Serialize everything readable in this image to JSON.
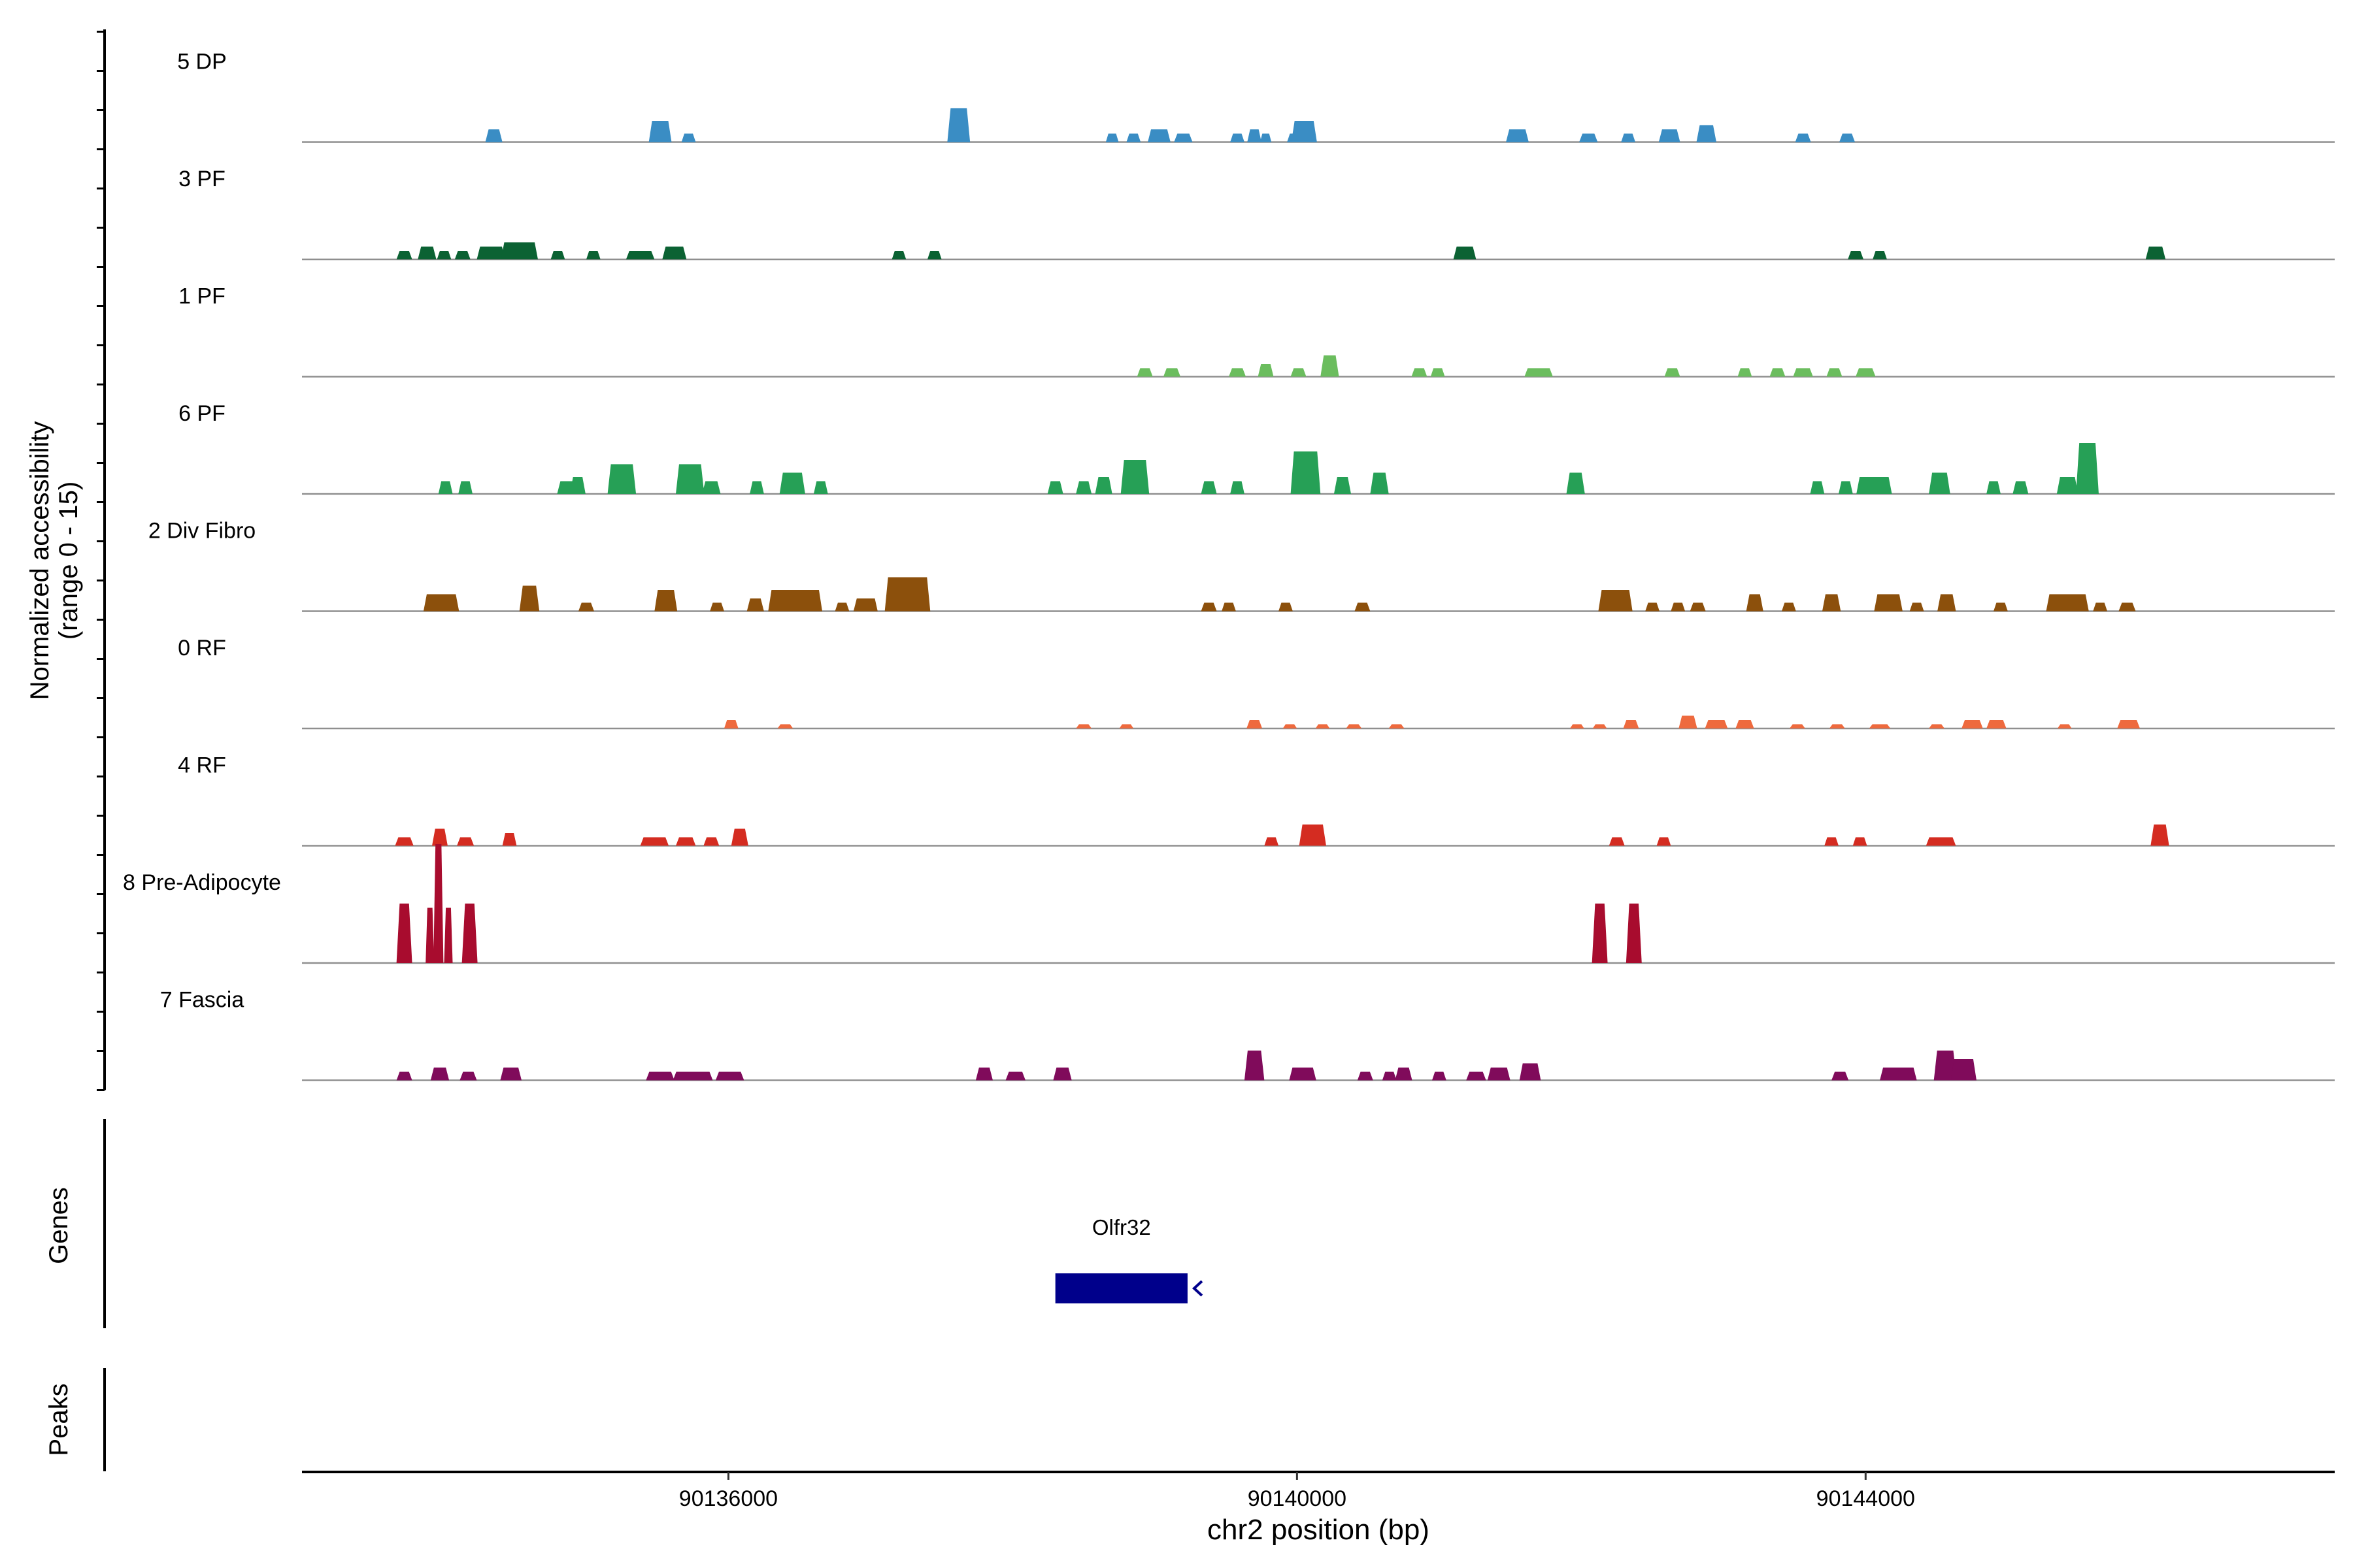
{
  "chart_data": {
    "type": "area",
    "title": "",
    "region": "chr2",
    "xlabel": "chr2 position (bp)",
    "ylabel_line1": "Normalized accessibility",
    "ylabel_line2": "(range 0 - 15)",
    "xlim": [
      90133000,
      90147300
    ],
    "ylim": [
      0,
      15
    ],
    "x_ticks": [
      90136000,
      90140000,
      90144000
    ],
    "x_tick_labels": [
      "90136000",
      "90140000",
      "90144000"
    ],
    "series": [
      {
        "name": "5 DP",
        "color": "#3a8dc4",
        "peaks": [
          [
            90134350,
            120,
            3
          ],
          [
            90135520,
            160,
            5
          ],
          [
            90135720,
            100,
            2
          ],
          [
            90137620,
            160,
            8
          ],
          [
            90138700,
            90,
            2
          ],
          [
            90138850,
            100,
            2
          ],
          [
            90139030,
            160,
            3
          ],
          [
            90139200,
            130,
            2
          ],
          [
            90139580,
            100,
            2
          ],
          [
            90139700,
            100,
            3
          ],
          [
            90139780,
            80,
            2
          ],
          [
            90139980,
            100,
            2
          ],
          [
            90140050,
            180,
            5
          ],
          [
            90141550,
            160,
            3
          ],
          [
            90142050,
            130,
            2
          ],
          [
            90142330,
            100,
            2
          ],
          [
            90142620,
            150,
            3
          ],
          [
            90142880,
            140,
            4
          ],
          [
            90143560,
            110,
            2
          ],
          [
            90143870,
            110,
            2
          ]
        ]
      },
      {
        "name": "3 PF",
        "color": "#0b6233",
        "peaks": [
          [
            90133720,
            110,
            2
          ],
          [
            90133880,
            130,
            3
          ],
          [
            90134000,
            100,
            2
          ],
          [
            90134130,
            110,
            2
          ],
          [
            90134330,
            200,
            3
          ],
          [
            90134530,
            260,
            4
          ],
          [
            90134800,
            100,
            2
          ],
          [
            90135050,
            100,
            2
          ],
          [
            90135380,
            200,
            2
          ],
          [
            90135620,
            170,
            3
          ],
          [
            90137200,
            100,
            2
          ],
          [
            90137450,
            100,
            2
          ],
          [
            90141180,
            160,
            3
          ],
          [
            90143930,
            110,
            2
          ],
          [
            90144100,
            100,
            2
          ],
          [
            90146040,
            140,
            3
          ]
        ]
      },
      {
        "name": "1 PF",
        "color": "#6bbd5e",
        "peaks": [
          [
            90138930,
            110,
            2
          ],
          [
            90139120,
            120,
            2
          ],
          [
            90139580,
            120,
            2
          ],
          [
            90139780,
            110,
            3
          ],
          [
            90140010,
            110,
            2
          ],
          [
            90140230,
            130,
            5
          ],
          [
            90140860,
            110,
            2
          ],
          [
            90140990,
            100,
            2
          ],
          [
            90141700,
            200,
            2
          ],
          [
            90142640,
            110,
            2
          ],
          [
            90143150,
            100,
            2
          ],
          [
            90143380,
            110,
            2
          ],
          [
            90143560,
            140,
            2
          ],
          [
            90143780,
            110,
            2
          ],
          [
            90144000,
            140,
            2
          ]
        ]
      },
      {
        "name": "6 PF",
        "color": "#26a056",
        "peaks": [
          [
            90134010,
            100,
            3
          ],
          [
            90134150,
            100,
            3
          ],
          [
            90134860,
            130,
            3
          ],
          [
            90134940,
            110,
            4
          ],
          [
            90135250,
            200,
            7
          ],
          [
            90135730,
            200,
            7
          ],
          [
            90135880,
            130,
            3
          ],
          [
            90136200,
            100,
            3
          ],
          [
            90136450,
            180,
            5
          ],
          [
            90136650,
            100,
            3
          ],
          [
            90138300,
            110,
            3
          ],
          [
            90138500,
            110,
            3
          ],
          [
            90138640,
            120,
            4
          ],
          [
            90138860,
            200,
            8
          ],
          [
            90139380,
            110,
            3
          ],
          [
            90139580,
            100,
            3
          ],
          [
            90140060,
            210,
            10
          ],
          [
            90140320,
            120,
            4
          ],
          [
            90140580,
            130,
            5
          ],
          [
            90141960,
            130,
            5
          ],
          [
            90143660,
            100,
            3
          ],
          [
            90143860,
            100,
            3
          ],
          [
            90144060,
            250,
            4
          ],
          [
            90144520,
            150,
            5
          ],
          [
            90144900,
            100,
            3
          ],
          [
            90145090,
            110,
            3
          ],
          [
            90145420,
            150,
            4
          ],
          [
            90145560,
            160,
            12
          ]
        ]
      },
      {
        "name": "2 Div Fibro",
        "color": "#8c500c",
        "peaks": [
          [
            90133980,
            250,
            4
          ],
          [
            90134600,
            140,
            6
          ],
          [
            90135000,
            110,
            2
          ],
          [
            90135560,
            160,
            5
          ],
          [
            90135920,
            100,
            2
          ],
          [
            90136190,
            120,
            3
          ],
          [
            90136470,
            380,
            5
          ],
          [
            90136800,
            100,
            2
          ],
          [
            90136950,
            140,
            3
          ],
          [
            90137000,
            100,
            3
          ],
          [
            90137260,
            320,
            8
          ],
          [
            90139380,
            110,
            2
          ],
          [
            90139520,
            100,
            2
          ],
          [
            90139920,
            100,
            2
          ],
          [
            90140460,
            110,
            2
          ],
          [
            90142240,
            240,
            5
          ],
          [
            90142500,
            100,
            2
          ],
          [
            90142680,
            100,
            2
          ],
          [
            90142820,
            110,
            2
          ],
          [
            90143220,
            120,
            4
          ],
          [
            90143460,
            100,
            2
          ],
          [
            90143760,
            130,
            4
          ],
          [
            90144160,
            200,
            4
          ],
          [
            90144360,
            100,
            2
          ],
          [
            90144570,
            130,
            4
          ],
          [
            90144950,
            100,
            2
          ],
          [
            90145420,
            300,
            4
          ],
          [
            90145650,
            100,
            2
          ],
          [
            90145840,
            120,
            2
          ]
        ]
      },
      {
        "name": "0 RF",
        "color": "#ee6a3e",
        "peaks": [
          [
            90136020,
            100,
            2
          ],
          [
            90136400,
            110,
            1
          ],
          [
            90138500,
            110,
            1
          ],
          [
            90138800,
            100,
            1
          ],
          [
            90139700,
            110,
            2
          ],
          [
            90139950,
            100,
            1
          ],
          [
            90140180,
            100,
            1
          ],
          [
            90140400,
            110,
            1
          ],
          [
            90140700,
            110,
            1
          ],
          [
            90141970,
            100,
            1
          ],
          [
            90142130,
            100,
            1
          ],
          [
            90142350,
            110,
            2
          ],
          [
            90142750,
            130,
            3
          ],
          [
            90142950,
            160,
            2
          ],
          [
            90143150,
            130,
            2
          ],
          [
            90143520,
            110,
            1
          ],
          [
            90143800,
            110,
            1
          ],
          [
            90144100,
            150,
            1
          ],
          [
            90144500,
            110,
            1
          ],
          [
            90144750,
            150,
            2
          ],
          [
            90144920,
            140,
            2
          ],
          [
            90145400,
            100,
            1
          ],
          [
            90145850,
            160,
            2
          ]
        ]
      },
      {
        "name": "4 RF",
        "color": "#d42c21",
        "peaks": [
          [
            90133720,
            130,
            2
          ],
          [
            90133970,
            110,
            4
          ],
          [
            90134150,
            120,
            2
          ],
          [
            90134460,
            100,
            3
          ],
          [
            90135480,
            200,
            2
          ],
          [
            90135700,
            140,
            2
          ],
          [
            90135880,
            110,
            2
          ],
          [
            90136080,
            120,
            4
          ],
          [
            90139820,
            100,
            2
          ],
          [
            90140110,
            190,
            5
          ],
          [
            90142250,
            110,
            2
          ],
          [
            90142580,
            100,
            2
          ],
          [
            90143760,
            100,
            2
          ],
          [
            90143960,
            100,
            2
          ],
          [
            90144530,
            210,
            2
          ],
          [
            90146070,
            130,
            5
          ]
        ]
      },
      {
        "name": "8 Pre-Adipocyte",
        "color": "#a80c2e",
        "peaks": [
          [
            90133720,
            110,
            14
          ],
          [
            90133900,
            60,
            13
          ],
          [
            90133960,
            70,
            28
          ],
          [
            90134030,
            60,
            13
          ],
          [
            90134180,
            110,
            14
          ],
          [
            90142130,
            110,
            14
          ],
          [
            90142370,
            110,
            14
          ]
        ]
      },
      {
        "name": "7 Fascia",
        "color": "#800b5b",
        "peaks": [
          [
            90133720,
            110,
            2
          ],
          [
            90133970,
            130,
            3
          ],
          [
            90134170,
            120,
            2
          ],
          [
            90134470,
            150,
            3
          ],
          [
            90135520,
            200,
            2
          ],
          [
            90135750,
            280,
            2
          ],
          [
            90136010,
            200,
            2
          ],
          [
            90137800,
            120,
            3
          ],
          [
            90138020,
            140,
            2
          ],
          [
            90138350,
            130,
            3
          ],
          [
            90139700,
            140,
            7
          ],
          [
            90140040,
            190,
            3
          ],
          [
            90140480,
            110,
            2
          ],
          [
            90140650,
            100,
            2
          ],
          [
            90140750,
            120,
            3
          ],
          [
            90141000,
            100,
            2
          ],
          [
            90141260,
            140,
            2
          ],
          [
            90141420,
            160,
            3
          ],
          [
            90141640,
            150,
            4
          ],
          [
            90143820,
            120,
            2
          ],
          [
            90144230,
            260,
            3
          ],
          [
            90144560,
            160,
            7
          ],
          [
            90144690,
            180,
            5
          ]
        ]
      }
    ],
    "genes_label": "Genes",
    "peaks_label": "Peaks",
    "genes": [
      {
        "name": "Olfr32",
        "start": 90138300,
        "end": 90139230,
        "strand": "-",
        "color": "#00008b"
      }
    ]
  }
}
